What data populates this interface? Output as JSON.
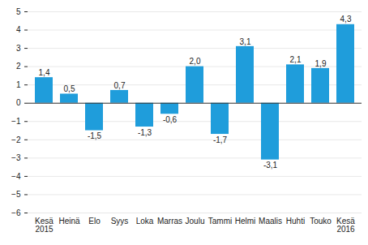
{
  "chart_data": {
    "type": "bar",
    "categories": [
      "Kesä\n2015",
      "Heinä",
      "Elo",
      "Syys",
      "Loka",
      "Marras",
      "Joulu",
      "Tammi",
      "Helmi",
      "Maalis",
      "Huhti",
      "Touko",
      "Kesä\n2016"
    ],
    "values": [
      1.4,
      0.5,
      -1.5,
      0.7,
      -1.3,
      -0.6,
      2.0,
      -1.7,
      3.1,
      -3.1,
      2.1,
      1.9,
      4.3
    ],
    "value_labels": [
      "1,4",
      "0,5",
      "-1,5",
      "0,7",
      "-1,3",
      "-0,6",
      "2,0",
      "-1,7",
      "3,1",
      "-3,1",
      "2,1",
      "1,9",
      "4,3"
    ],
    "color": "#1f9ddb",
    "ylim": [
      -6,
      5
    ],
    "yticks": [
      -6,
      -5,
      -4,
      -3,
      -2,
      -1,
      0,
      1,
      2,
      3,
      4,
      5
    ],
    "grid": true,
    "data_labels": true
  }
}
